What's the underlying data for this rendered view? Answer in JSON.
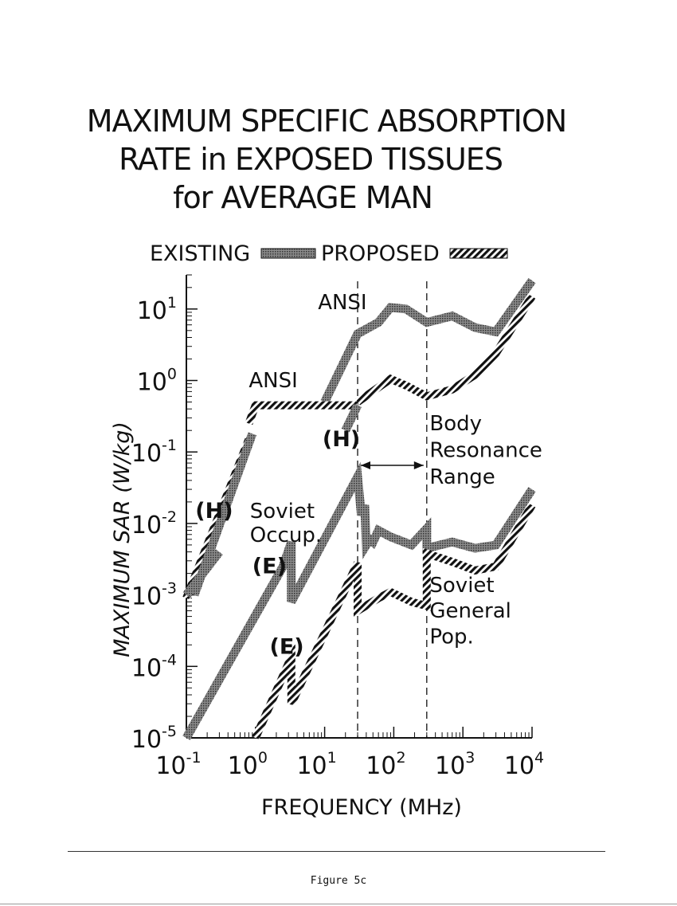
{
  "title": {
    "line1": "MAXIMUM SPECIFIC ABSORPTION",
    "line2": "RATE in EXPOSED TISSUES",
    "line3": "for AVERAGE MAN"
  },
  "legend": {
    "existing": "EXISTING",
    "proposed": "PROPOSED",
    "placement": "top"
  },
  "caption": "Figure 5c",
  "colors": {
    "ink": "#111111",
    "existing_fill": "#888888",
    "proposed_fill": "#111111"
  },
  "chart_data": {
    "type": "line",
    "xlabel": "FREQUENCY (MHz)",
    "ylabel": "MAXIMUM SAR (W/kg)",
    "xscale": "log",
    "yscale": "log",
    "xlim": [
      0.1,
      10000
    ],
    "ylim": [
      1e-05,
      30
    ],
    "xticks": [
      {
        "value": 0.1,
        "base": "10",
        "exp": "-1"
      },
      {
        "value": 1,
        "base": "10",
        "exp": "0"
      },
      {
        "value": 10,
        "base": "10",
        "exp": "1"
      },
      {
        "value": 100,
        "base": "10",
        "exp": "2"
      },
      {
        "value": 1000,
        "base": "10",
        "exp": "3"
      },
      {
        "value": 10000,
        "base": "10",
        "exp": "4"
      }
    ],
    "yticks": [
      {
        "value": 10,
        "base": "10",
        "exp": "1"
      },
      {
        "value": 1,
        "base": "10",
        "exp": "0"
      },
      {
        "value": 0.1,
        "base": "10",
        "exp": "-1"
      },
      {
        "value": 0.01,
        "base": "10",
        "exp": "-2"
      },
      {
        "value": 0.001,
        "base": "10",
        "exp": "-3"
      },
      {
        "value": 0.0001,
        "base": "10",
        "exp": "-4"
      },
      {
        "value": 1e-05,
        "base": "10",
        "exp": "-5"
      }
    ],
    "vlines": [
      30,
      300
    ],
    "annotations": [
      {
        "text": "ANSI",
        "x": 8,
        "y": 10
      },
      {
        "text": "ANSI",
        "x": 0.8,
        "y": 0.8
      },
      {
        "text": "(H)",
        "x": 9.3,
        "y": 0.12
      },
      {
        "text": "(H)",
        "x": 0.135,
        "y": 0.012
      },
      {
        "text": "Soviet",
        "x": 0.83,
        "y": 0.012
      },
      {
        "text": "Occup.",
        "x": 0.83,
        "y": 0.0055
      },
      {
        "text": "(E)",
        "x": 0.9,
        "y": 0.002
      },
      {
        "text": "(E)",
        "x": 1.6,
        "y": 0.00015
      },
      {
        "text": "Body",
        "x": 330,
        "y": 0.2
      },
      {
        "text": "Resonance",
        "x": 330,
        "y": 0.085
      },
      {
        "text": "Range",
        "x": 330,
        "y": 0.036
      },
      {
        "text": "Soviet",
        "x": 330,
        "y": 0.0011
      },
      {
        "text": "General",
        "x": 330,
        "y": 0.00048
      },
      {
        "text": "Pop.",
        "x": 330,
        "y": 0.00021
      }
    ],
    "range_arrow": {
      "x1": 30,
      "x2": 300,
      "y": 0.065
    },
    "series": [
      {
        "style": "existing",
        "x": [
          10,
          30,
          60,
          90,
          150,
          300,
          700,
          1500,
          3000,
          10000
        ],
        "y": [
          0.5,
          4.5,
          6.5,
          10.5,
          10,
          6.5,
          8,
          5.5,
          4.8,
          25
        ]
      },
      {
        "style": "proposed",
        "x": [
          0.8,
          1,
          3,
          10,
          30
        ],
        "y": [
          0.25,
          0.45,
          0.45,
          0.45,
          0.45
        ]
      },
      {
        "style": "proposed",
        "x": [
          30,
          60,
          90,
          150,
          300,
          700,
          1500,
          3000,
          10000
        ],
        "y": [
          0.5,
          0.8,
          1.05,
          0.85,
          0.6,
          0.75,
          1.2,
          2.4,
          15
        ]
      },
      {
        "style": "existing",
        "x": [
          20,
          30
        ],
        "y": [
          0.2,
          0.45
        ]
      },
      {
        "style": "proposed",
        "x": [
          0.1,
          0.8
        ],
        "y": [
          0.0009,
          0.15
        ]
      },
      {
        "style": "existing",
        "x": [
          0.3,
          0.1
        ],
        "y": [
          0.004,
          0.001
        ]
      },
      {
        "style": "existing",
        "x": [
          0.13,
          0.9
        ],
        "y": [
          0.001,
          0.18
        ]
      },
      {
        "style": "existing",
        "x": [
          0.1,
          2.5,
          3.3,
          3.3,
          30,
          34,
          38,
          40,
          45,
          50,
          60,
          90,
          180,
          300,
          300,
          700,
          1500,
          3000,
          10000
        ],
        "y": [
          1e-05,
          0.0025,
          0.0055,
          0.0008,
          0.045,
          0.013,
          0.018,
          0.005,
          0.006,
          0.0055,
          0.008,
          0.0065,
          0.005,
          0.0085,
          0.0045,
          0.0055,
          0.0045,
          0.005,
          0.03
        ]
      },
      {
        "style": "proposed",
        "x": [
          1,
          3,
          3.3,
          3.3,
          30,
          30,
          60,
          90,
          180,
          300,
          300,
          700,
          1500,
          3000,
          10000
        ],
        "y": [
          1e-05,
          0.00011,
          0.00013,
          3e-05,
          0.0028,
          0.0006,
          0.0009,
          0.0011,
          0.0008,
          0.0007,
          0.0038,
          0.0029,
          0.0022,
          0.0025,
          0.018
        ]
      }
    ]
  }
}
